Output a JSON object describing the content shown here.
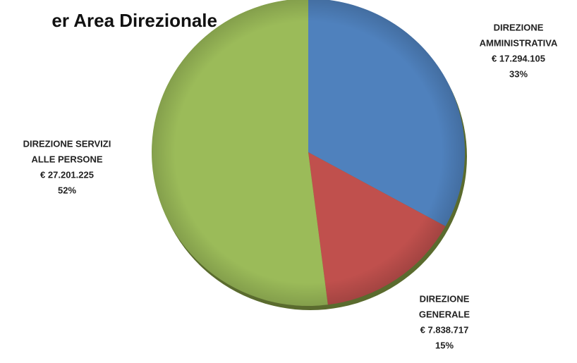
{
  "chart_data": {
    "type": "pie",
    "title": "er Area Direzionale",
    "categories": [
      [
        "DIREZIONE",
        "AMMINISTRATIVA"
      ],
      [
        "DIREZIONE",
        "GENERALE"
      ],
      [
        "DIREZIONE SERVIZI",
        "ALLE PERSONE"
      ]
    ],
    "values": [
      33,
      15,
      52
    ],
    "value_labels": [
      "33%",
      "15%",
      "52%"
    ],
    "amounts": [
      17294105,
      7838717,
      27201225
    ],
    "amount_labels": [
      "€ 17.294.105",
      "€ 7.838.717",
      "€ 27.201.225"
    ],
    "colors": [
      "#4f81bd",
      "#c0504d",
      "#9bbb59"
    ]
  }
}
